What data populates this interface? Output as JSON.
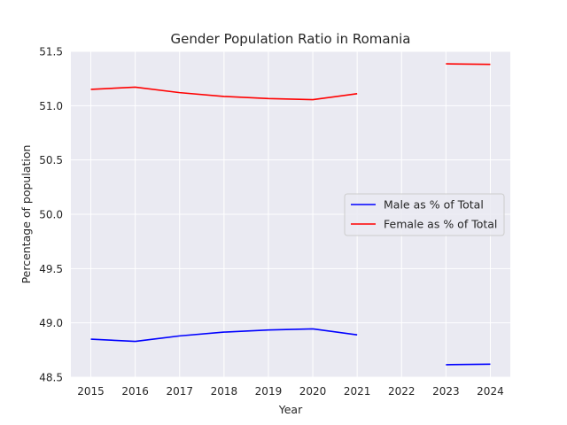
{
  "chart_data": {
    "type": "line",
    "title": "Gender Population Ratio in Romania",
    "xlabel": "Year",
    "ylabel": "Percentage of population",
    "categories": [
      "2015",
      "2016",
      "2017",
      "2018",
      "2019",
      "2020",
      "2021",
      "2022",
      "2023",
      "2024"
    ],
    "x": [
      2015,
      2016,
      2017,
      2018,
      2019,
      2020,
      2021,
      2022,
      2023,
      2024
    ],
    "xlim": [
      2014.55,
      2024.45
    ],
    "ylim": [
      48.5,
      51.5
    ],
    "yticks": [
      "48.5",
      "49.0",
      "49.5",
      "50.0",
      "50.5",
      "51.0",
      "51.5"
    ],
    "grid": true,
    "legend_position": "center-right",
    "series": [
      {
        "name": "Male as % of Total",
        "color": "#0000ff",
        "values": [
          48.85,
          48.83,
          48.88,
          48.915,
          48.935,
          48.945,
          48.89,
          null,
          48.615,
          48.62
        ]
      },
      {
        "name": "Female as % of Total",
        "color": "#ff0000",
        "values": [
          51.15,
          51.17,
          51.12,
          51.085,
          51.065,
          51.055,
          51.11,
          null,
          51.385,
          51.38
        ]
      }
    ]
  }
}
